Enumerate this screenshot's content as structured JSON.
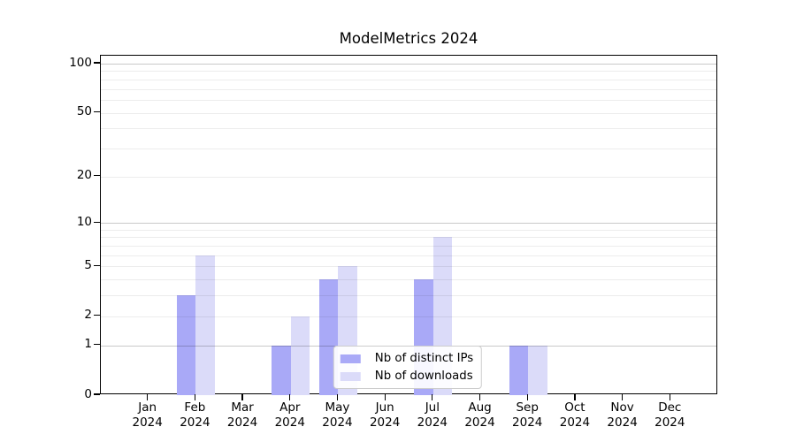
{
  "title": "ModelMetrics 2024",
  "chart_data": {
    "type": "bar",
    "title": "ModelMetrics 2024",
    "categories": [
      "Jan 2024",
      "Feb 2024",
      "Mar 2024",
      "Apr 2024",
      "May 2024",
      "Jun 2024",
      "Jul 2024",
      "Aug 2024",
      "Sep 2024",
      "Oct 2024",
      "Nov 2024",
      "Dec 2024"
    ],
    "series": [
      {
        "name": "Nb of distinct IPs",
        "color": "#a9a9f7",
        "values": [
          0,
          3,
          0,
          1,
          4,
          0,
          4,
          0,
          1,
          0,
          0,
          0
        ]
      },
      {
        "name": "Nb of downloads",
        "color": "#dbdbf9",
        "values": [
          0,
          6,
          0,
          2,
          5,
          0,
          8,
          0,
          1,
          0,
          0,
          0
        ]
      }
    ],
    "xlabel": "",
    "ylabel": "",
    "yscale": "log1p",
    "ylim": [
      0,
      100
    ],
    "yticks": [
      0,
      1,
      2,
      5,
      10,
      20,
      50,
      100
    ],
    "gridline_values": [
      1,
      2,
      3,
      4,
      5,
      6,
      7,
      8,
      9,
      10,
      20,
      30,
      40,
      50,
      60,
      70,
      80,
      90,
      100
    ],
    "major_gridlines": [
      1,
      10,
      100
    ],
    "grid": true,
    "legend_position": "lower center"
  },
  "colors": {
    "series_1": "#a9a9f7",
    "series_2": "#dbdbf9",
    "spine": "#000000",
    "legend_border": "#cccccc",
    "background": "#ffffff"
  }
}
